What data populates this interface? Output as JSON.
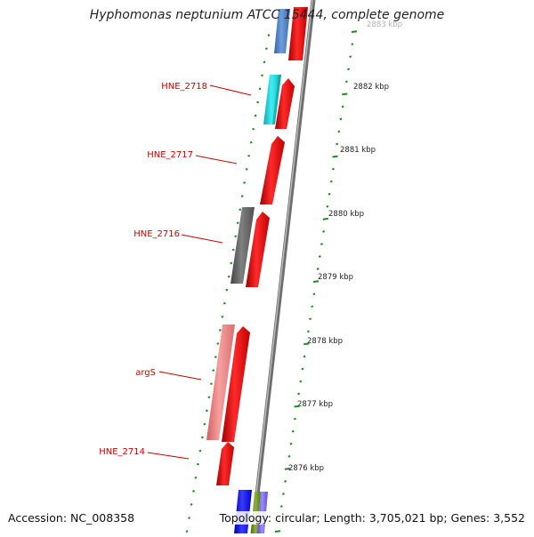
{
  "title": "Hyphomonas neptunium ATCC 15444, complete genome",
  "footer": {
    "accession": "Accession: NC_008358",
    "summary": "Topology: circular; Length: 3,705,021 bp; Genes: 3,552"
  },
  "kbp_labels": [
    "2883 kbp",
    "2882 kbp",
    "2881 kbp",
    "2880 kbp",
    "2879 kbp",
    "2878 kbp",
    "2877 kbp",
    "2876 kbp"
  ],
  "gene_labels": [
    "HNE_2718",
    "HNE_2717",
    "HNE_2716",
    "argS",
    "HNE_2714"
  ],
  "colors": {
    "backbone": "#8a8a8a",
    "tick": "#1f8a1f",
    "label": "#cc0000",
    "gene_red": "#ff0000",
    "gene_cyan": "#22d6dc",
    "gene_gray": "#6a6a6a",
    "gene_pink": "#f08080",
    "gene_steel": "#4f86c6",
    "gene_blue": "#1010ff",
    "gene_olive": "#6b8e23",
    "gene_slate": "#7b68ee"
  }
}
